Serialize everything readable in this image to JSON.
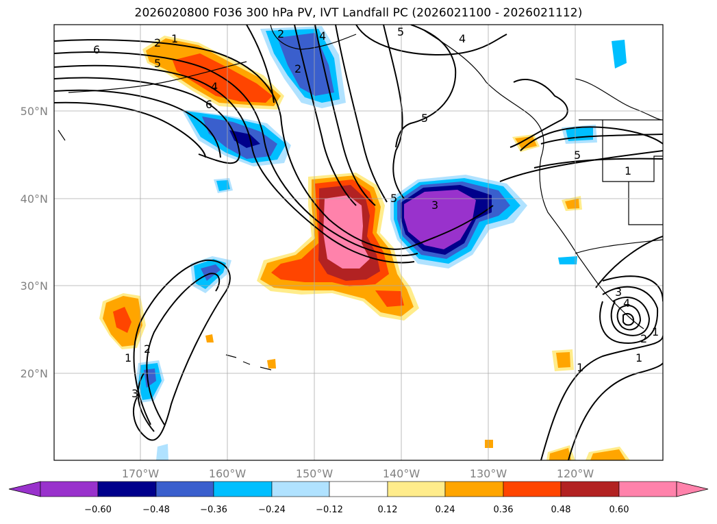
{
  "title": "2026020800 F036 300 hPa PV, IVT Landfall PC (2026021100 - 2026021112)",
  "map": {
    "lat_ticks": [
      "50°N",
      "40°N",
      "30°N",
      "20°N"
    ],
    "lon_ticks": [
      "170°W",
      "160°W",
      "150°W",
      "140°W",
      "130°W",
      "120°W"
    ]
  },
  "contour_labels": [
    "6",
    "2",
    "1",
    "5",
    "4",
    "6",
    "2",
    "4",
    "5",
    "2",
    "4",
    "5",
    "5",
    "1",
    "5",
    "3",
    "1",
    "2",
    "3",
    "3",
    "1",
    "2",
    "1",
    "1",
    "4"
  ],
  "colorbar": {
    "levels": [
      "−0.60",
      "−0.48",
      "−0.36",
      "−0.24",
      "−0.12",
      "0.12",
      "0.24",
      "0.36",
      "0.48",
      "0.60"
    ],
    "colors": [
      "#9932cc",
      "#00008b",
      "#3a5fcd",
      "#00bfff",
      "#b0e2ff",
      "#ffffff",
      "#ffec8b",
      "#ffa500",
      "#ff4500",
      "#b22222",
      "#ff82ab"
    ]
  }
}
